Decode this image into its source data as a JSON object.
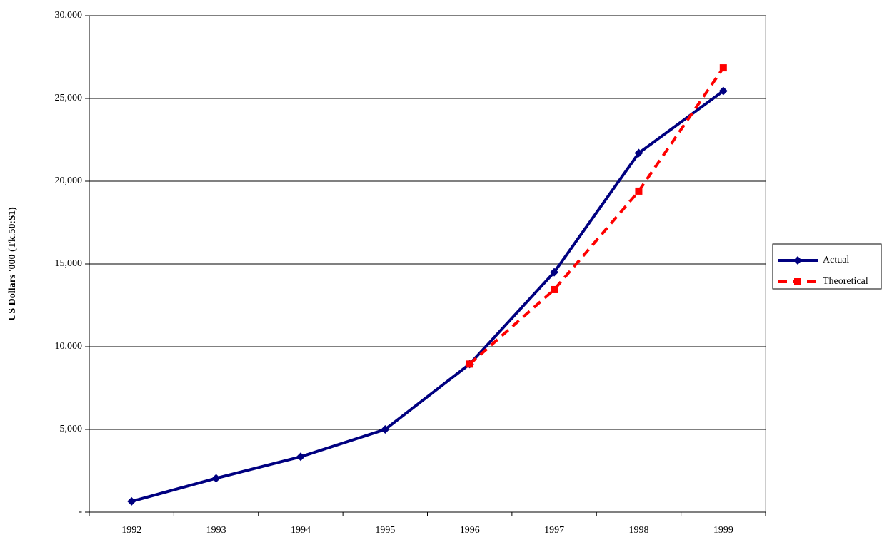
{
  "chart_data": {
    "type": "line",
    "y_label": "US Dollars '000 (Tk.50:$1)",
    "categories": [
      "1992",
      "1993",
      "1994",
      "1995",
      "1996",
      "1997",
      "1998",
      "1999"
    ],
    "series": [
      {
        "name": "Actual",
        "color": "#000080",
        "marker": "diamond",
        "dashed": false,
        "values": [
          650,
          2050,
          3350,
          5000,
          8950,
          14500,
          21700,
          25450
        ]
      },
      {
        "name": "Theoretical",
        "color": "#ff0000",
        "marker": "square",
        "dashed": true,
        "values": [
          null,
          null,
          null,
          null,
          8950,
          13450,
          19400,
          26850
        ]
      }
    ],
    "ylim": [
      0,
      30000
    ],
    "yticks": [
      {
        "value": 0,
        "label": "-"
      },
      {
        "value": 5000,
        "label": "5,000"
      },
      {
        "value": 10000,
        "label": "10,000"
      },
      {
        "value": 15000,
        "label": "15,000"
      },
      {
        "value": 20000,
        "label": "20,000"
      },
      {
        "value": 25000,
        "label": "25,000"
      },
      {
        "value": 30000,
        "label": "30,000"
      }
    ],
    "grid": true,
    "legend": "right"
  }
}
